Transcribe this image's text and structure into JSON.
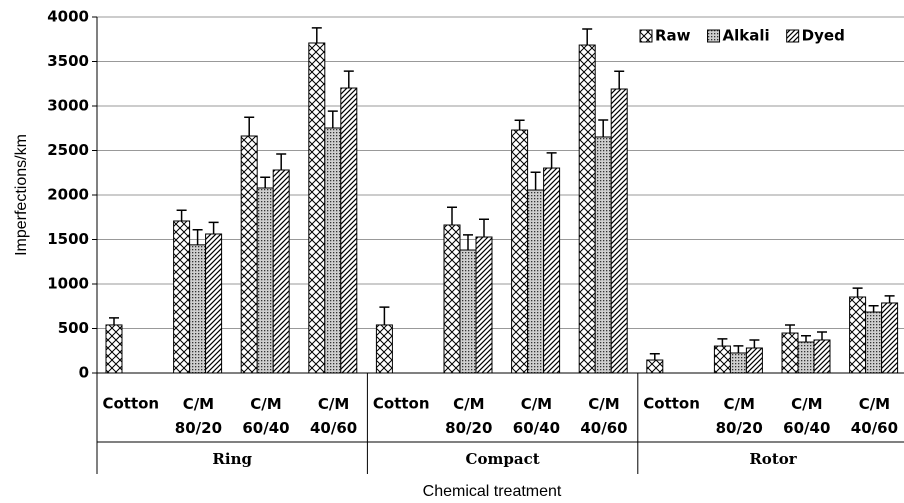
{
  "chart_data": {
    "type": "bar",
    "y_label": "Imperfections/km",
    "x_label": "Chemical treatment",
    "groups": [
      "Ring",
      "Compact",
      "Rotor"
    ],
    "categories": [
      "Cotton",
      "C/M 80/20",
      "C/M 60/40",
      "C/M 40/60",
      "Cotton",
      "C/M 80/20",
      "C/M 60/40",
      "C/M 40/60",
      "Cotton",
      "C/M 80/20",
      "C/M 60/40",
      "C/M 40/60"
    ],
    "series": [
      {
        "name": "Raw",
        "pattern": "crosshatch",
        "values": [
          540,
          1708,
          2663,
          3708,
          540,
          1663,
          2730,
          3685,
          146,
          303,
          449,
          854
        ],
        "errors": [
          80,
          120,
          210,
          170,
          200,
          200,
          110,
          180,
          70,
          80,
          90,
          100
        ]
      },
      {
        "name": "Alkali",
        "pattern": "dots",
        "values": [
          null,
          1440,
          2079,
          2753,
          null,
          1382,
          2056,
          2652,
          null,
          225,
          348,
          685
        ],
        "errors": [
          null,
          170,
          120,
          190,
          null,
          170,
          200,
          190,
          null,
          80,
          70,
          70
        ]
      },
      {
        "name": "Dyed",
        "pattern": "diagonal",
        "values": [
          null,
          1562,
          2281,
          3202,
          null,
          1528,
          2303,
          3191,
          null,
          281,
          371,
          787
        ],
        "errors": [
          null,
          130,
          180,
          190,
          null,
          200,
          170,
          200,
          null,
          90,
          90,
          80
        ]
      }
    ],
    "ylim": [
      0,
      4000
    ],
    "yticks": [
      0,
      500,
      1000,
      1500,
      2000,
      2500,
      3000,
      3500,
      4000
    ],
    "grid": true,
    "legend": "upper right"
  }
}
